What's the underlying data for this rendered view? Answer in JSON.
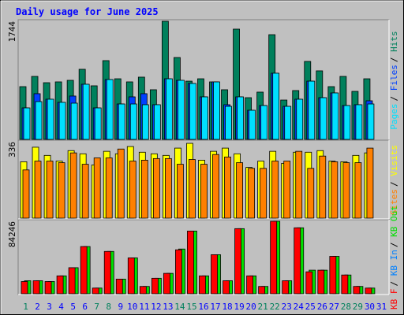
{
  "chart_data": {
    "type": "bar",
    "title": "Daily usage for June 2025",
    "categories": [
      "1",
      "2",
      "3",
      "4",
      "5",
      "6",
      "7",
      "8",
      "9",
      "10",
      "11",
      "12",
      "13",
      "14",
      "15",
      "16",
      "17",
      "18",
      "19",
      "20",
      "21",
      "22",
      "23",
      "24",
      "25",
      "26",
      "27",
      "28",
      "29",
      "30",
      "31"
    ],
    "weekend": [
      true,
      false,
      false,
      false,
      false,
      false,
      true,
      true,
      false,
      false,
      false,
      false,
      false,
      true,
      true,
      false,
      false,
      false,
      false,
      false,
      true,
      true,
      false,
      false,
      false,
      false,
      false,
      true,
      true,
      false,
      false
    ],
    "weekend_color": "#00805c",
    "label_color": "#0000ff",
    "legend_separator": "/",
    "panels": [
      {
        "ylim": [
          0,
          1744
        ],
        "yticks": [
          1744
        ],
        "series": [
          {
            "name": "Hits",
            "color": "#00805c",
            "values": [
              779,
              930,
              837,
              849,
              872,
              1035,
              791,
              1163,
              895,
              849,
              919,
              733,
              1744,
              1209,
              860,
              895,
              849,
              733,
              1628,
              616,
              698,
              1546,
              581,
              721,
              1151,
              1012,
              779,
              930,
              709,
              895,
              null
            ]
          },
          {
            "name": "Files",
            "color": "#0040ff",
            "values": [
              465,
              675,
              593,
              547,
              640,
              814,
              465,
              884,
              523,
              628,
              675,
              512,
              895,
              872,
              826,
              628,
              849,
              512,
              628,
              430,
              500,
              977,
              488,
              593,
              860,
              616,
              686,
              500,
              512,
              570,
              null
            ]
          },
          {
            "name": "Pages",
            "color": "#00e0ff",
            "values": [
              465,
              558,
              593,
              547,
              535,
              814,
              465,
              884,
              523,
              523,
              512,
              512,
              895,
              872,
              826,
              628,
              849,
              488,
              628,
              430,
              500,
              977,
              488,
              593,
              860,
              616,
              686,
              500,
              512,
              523,
              null
            ]
          }
        ]
      },
      {
        "ylim": [
          0,
          336
        ],
        "yticks": [
          336
        ],
        "series": [
          {
            "name": "Visits",
            "color": "#ffff00",
            "values": [
              248,
              312,
              276,
              251,
              297,
              283,
              234,
              294,
              283,
              315,
              290,
              283,
              276,
              308,
              329,
              255,
              294,
              308,
              283,
              223,
              251,
              294,
              241,
              290,
              290,
              297,
              251,
              248,
              276,
              287,
              null
            ]
          },
          {
            "name": "Sites",
            "color": "#ff8000",
            "values": [
              212,
              251,
              251,
              244,
              287,
              237,
              265,
              265,
              304,
              251,
              255,
              262,
              262,
              237,
              258,
              237,
              280,
              269,
              244,
              219,
              219,
              251,
              251,
              294,
              219,
              273,
              248,
              244,
              244,
              308,
              null
            ]
          }
        ]
      },
      {
        "ylim": [
          0,
          84246
        ],
        "yticks": [
          84246
        ],
        "series": [
          {
            "name": "KB Out",
            "color": "#00e000",
            "values": [
              15100,
              15100,
              14200,
              20800,
              30300,
              54900,
              6600,
              49200,
              17000,
              41700,
              8500,
              18000,
              23700,
              52000,
              72900,
              20800,
              45400,
              15100,
              75700,
              20800,
              8500,
              84246,
              15100,
              76700,
              27400,
              27400,
              43500,
              21800,
              8500,
              6600,
              null
            ]
          },
          {
            "name": "KB In",
            "color": "#0080ff",
            "values": []
          },
          {
            "name": "KB F",
            "color": "#ff0000",
            "values": [
              14200,
              15100,
              14200,
              20800,
              30300,
              54900,
              6600,
              49200,
              17000,
              41700,
              8500,
              18000,
              23700,
              51100,
              72900,
              20800,
              45400,
              15100,
              75700,
              20800,
              8500,
              84246,
              15100,
              76700,
              25500,
              27400,
              43500,
              21800,
              8500,
              6600,
              null
            ]
          }
        ]
      }
    ]
  }
}
